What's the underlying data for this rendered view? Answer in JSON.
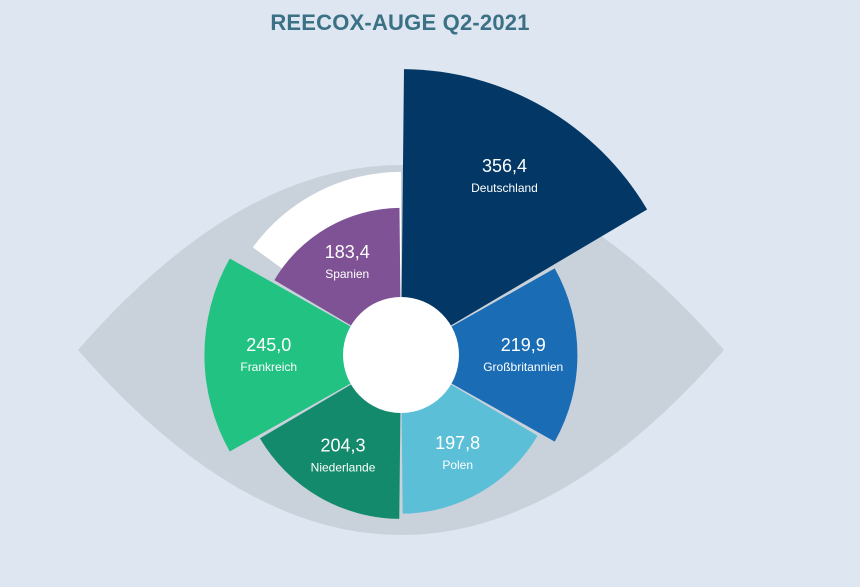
{
  "chart_data": {
    "type": "polar-area",
    "title": "REECOX-AUGE Q2-2021",
    "categories": [
      "Deutschland",
      "Großbritannien",
      "Polen",
      "Niederlande",
      "Frankreich",
      "Spanien"
    ],
    "values": [
      356.4,
      219.9,
      197.8,
      204.3,
      245.0,
      183.4
    ],
    "value_labels": [
      "356,4",
      "219,9",
      "197,8",
      "204,3",
      "245,0",
      "183,4"
    ],
    "colors": [
      "#033866",
      "#1a6db5",
      "#5bbfd8",
      "#148a6c",
      "#21c282",
      "#7e5295"
    ],
    "background_shape": "eye",
    "legend": "none"
  }
}
